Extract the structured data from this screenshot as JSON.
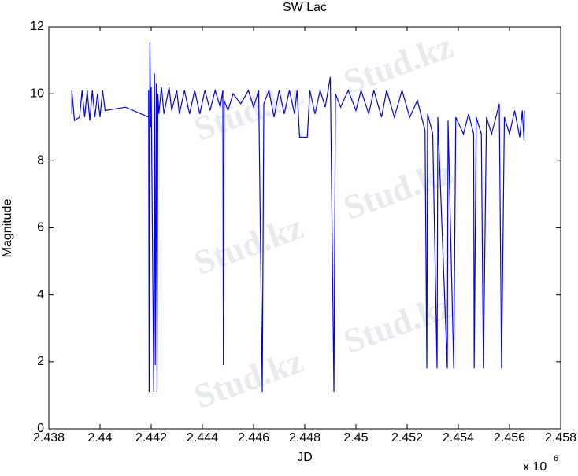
{
  "chart_data": {
    "type": "line",
    "title": "SW Lac",
    "xlabel": "JD",
    "ylabel": "Magnitude",
    "x_multiplier": "x 10",
    "x_multiplier_exp": "6",
    "watermark": "Stud.kz",
    "color": "#0000ff",
    "x": [
      2.4389,
      2.4389,
      2.439,
      2.4392,
      2.4393,
      2.4394,
      2.4395,
      2.4396,
      2.4397,
      2.4398,
      2.4399,
      2.44,
      2.4401,
      2.4402,
      2.441,
      2.4419,
      2.4419,
      2.44192,
      2.44195,
      2.44198,
      2.442,
      2.4421,
      2.44213,
      2.44216,
      2.4422,
      2.44223,
      2.44226,
      2.4423,
      2.4424,
      2.4425,
      2.4427,
      2.4428,
      2.443,
      2.4431,
      2.4433,
      2.4435,
      2.4437,
      2.4439,
      2.4441,
      2.4443,
      2.4445,
      2.4447,
      2.4448,
      2.44482,
      2.44485,
      2.445,
      2.4452,
      2.4455,
      2.4458,
      2.446,
      2.4462,
      2.44634,
      2.4464,
      2.4466,
      2.4468,
      2.447,
      2.4472,
      2.4474,
      2.4476,
      2.4477,
      2.4478,
      2.4481,
      2.4482,
      2.4484,
      2.4486,
      2.4488,
      2.449,
      2.44914,
      2.4492,
      2.4494,
      2.4497,
      2.45,
      2.4502,
      2.4505,
      2.4507,
      2.451,
      2.4512,
      2.4515,
      2.4518,
      2.4521,
      2.4524,
      2.4527,
      2.45277,
      2.4528,
      2.453,
      2.45317,
      2.4532,
      2.45357,
      2.4536,
      2.45382,
      2.4539,
      2.4542,
      2.4544,
      2.4546,
      2.45462,
      2.4547,
      2.4549,
      2.45498,
      2.4551,
      2.4553,
      2.4555,
      2.4556,
      2.45569,
      2.4558,
      2.456,
      2.4562,
      2.4564,
      2.4565,
      2.45657,
      2.45658
    ],
    "values": [
      9.4,
      10.1,
      9.2,
      9.3,
      10.1,
      9.3,
      10.1,
      9.2,
      10.1,
      9.3,
      10.0,
      9.3,
      10.1,
      9.5,
      9.6,
      9.3,
      10.1,
      1.1,
      11.5,
      9.0,
      10.2,
      1.1,
      10.6,
      1.9,
      10.3,
      1.1,
      10.0,
      9.4,
      10.2,
      9.4,
      10.2,
      9.5,
      10.1,
      9.4,
      10.1,
      9.4,
      10.1,
      9.4,
      10.1,
      9.5,
      10.1,
      9.6,
      10.1,
      1.9,
      9.8,
      9.5,
      10.0,
      9.7,
      10.1,
      9.6,
      10.1,
      1.1,
      9.7,
      10.1,
      9.3,
      10.1,
      9.4,
      10.1,
      9.4,
      10.1,
      8.7,
      8.7,
      10.1,
      9.4,
      10.1,
      9.6,
      10.5,
      1.1,
      10.0,
      9.6,
      10.1,
      9.5,
      10.1,
      9.4,
      10.1,
      9.3,
      10.1,
      9.3,
      10.1,
      9.3,
      9.8,
      8.9,
      1.8,
      9.4,
      8.8,
      1.8,
      9.3,
      1.8,
      9.2,
      1.8,
      9.3,
      8.8,
      9.4,
      8.8,
      1.8,
      9.3,
      8.8,
      1.8,
      9.3,
      8.8,
      9.4,
      9.7,
      1.8,
      9.3,
      8.8,
      9.5,
      8.7,
      9.5,
      8.6,
      9.5
    ],
    "xlim": [
      2.438,
      2.458
    ],
    "xticks": [
      2.438,
      2.44,
      2.442,
      2.444,
      2.446,
      2.448,
      2.45,
      2.452,
      2.454,
      2.456,
      2.458
    ],
    "ylim": [
      0,
      12
    ],
    "yticks": [
      0,
      2,
      4,
      6,
      8,
      10,
      12
    ],
    "grid": false
  }
}
